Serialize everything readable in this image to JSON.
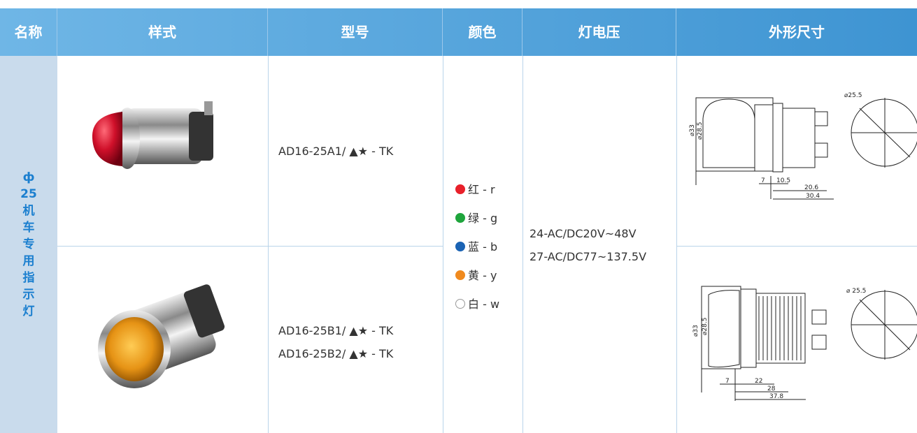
{
  "header": [
    "名称",
    "样式",
    "型号",
    "颜色",
    "灯电压",
    "外形尺寸"
  ],
  "name": [
    "ф",
    "25",
    "机",
    "车",
    "专",
    "用",
    "指",
    "示",
    "灯"
  ],
  "rows": [
    {
      "models": [
        "AD16-25A1/ ▲★ - TK"
      ],
      "dims": [
        "⌀25.5",
        "⌀33",
        "⌀28.5",
        "7",
        "10.5",
        "20.6",
        "30.4"
      ]
    },
    {
      "models": [
        "AD16-25B1/ ▲★ - TK",
        "AD16-25B2/ ▲★ - TK"
      ],
      "dims": [
        "⌀ 25.5",
        "⌀33",
        "⌀28.5",
        "7",
        "22",
        "28",
        "37.8"
      ]
    }
  ],
  "colors": [
    {
      "label": "红 - r",
      "color": "#e8202a"
    },
    {
      "label": "绿 - g",
      "color": "#1fa53c"
    },
    {
      "label": "蓝 - b",
      "color": "#1b63b4"
    },
    {
      "label": "黄 - y",
      "color": "#f08a1e"
    },
    {
      "label": "白 - w",
      "color": "#ffffff"
    }
  ],
  "voltage": [
    "24-AC/DC20V~48V",
    "27-AC/DC77~137.5V"
  ]
}
